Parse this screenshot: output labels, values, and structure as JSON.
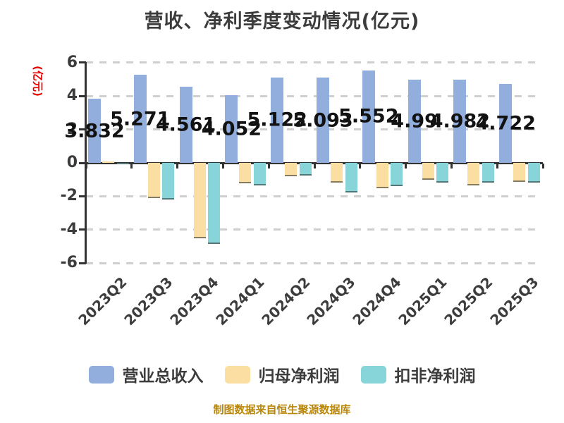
{
  "title": "营收、净利季度变动情况(亿元)",
  "y_axis_name": "(亿元)",
  "footer": "制图数据来自恒生聚源数据库",
  "colors": {
    "revenue_bar": "#92AEDC",
    "net_profit_bar": "#FBDFA2",
    "deducted_net_profit_bar": "#87D5D8",
    "axis": "#333333",
    "gridline": "#CFCFCF",
    "title_text": "#3C3C3C",
    "value_label_text": "#121212",
    "y_axis_name_text": "#E60000",
    "footer_text": "#B8860B"
  },
  "chart_data": {
    "type": "bar",
    "title": "营收、净利季度变动情况(亿元)",
    "ylabel": "(亿元)",
    "ylim": [
      -6,
      6
    ],
    "yticks": [
      6,
      4,
      2,
      0,
      -2,
      -4,
      -6
    ],
    "grid": true,
    "legend_position": "bottom",
    "categories": [
      "2023Q2",
      "2023Q3",
      "2023Q4",
      "2024Q1",
      "2024Q2",
      "2024Q3",
      "2024Q4",
      "2025Q1",
      "2025Q2",
      "2025Q3"
    ],
    "series": [
      {
        "name": "营业总收入",
        "color": "#92AEDC",
        "values": [
          3.832,
          5.271,
          4.561,
          4.052,
          5.122,
          5.093,
          5.552,
          4.99,
          4.982,
          4.722
        ],
        "labels": [
          "3.832",
          "5.271",
          "4.561",
          "4.052",
          "5.122",
          "5.093",
          "5.552",
          "4.99",
          "4.982",
          "4.722"
        ]
      },
      {
        "name": "归母净利润",
        "color": "#FBDFA2",
        "values": [
          0.1,
          -2.1,
          -4.54,
          -1.22,
          -0.82,
          -1.17,
          -1.53,
          -1.03,
          -1.34,
          -1.13
        ]
      },
      {
        "name": "扣非净利润",
        "color": "#87D5D8",
        "values": [
          -0.05,
          -2.2,
          -4.85,
          -1.35,
          -0.78,
          -1.76,
          -1.41,
          -1.17,
          -1.2,
          -1.17
        ]
      }
    ]
  }
}
